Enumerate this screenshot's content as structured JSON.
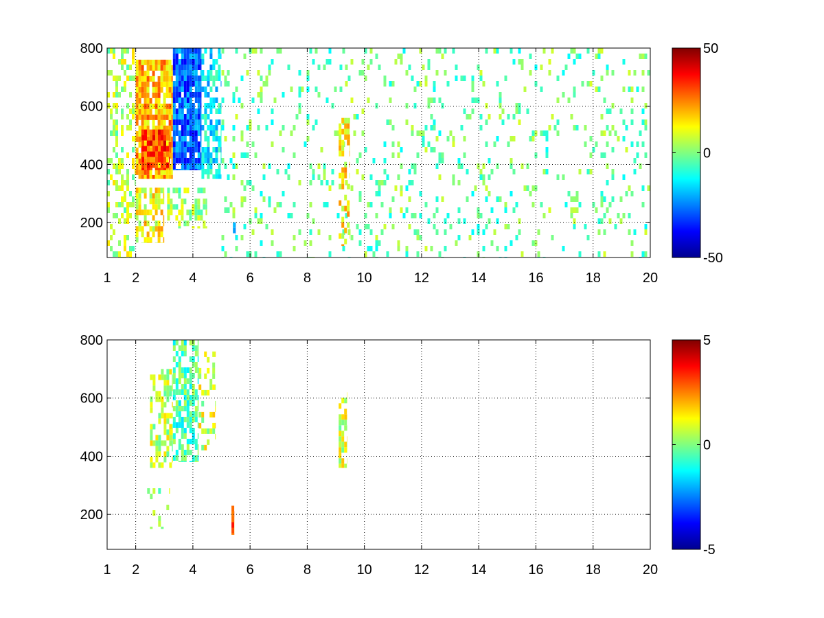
{
  "chart_data": [
    {
      "type": "heatmap",
      "title": "",
      "xlabel": "",
      "ylabel": "",
      "xlim": [
        1,
        20
      ],
      "ylim": [
        80,
        800
      ],
      "x_ticks": [
        1,
        2,
        4,
        6,
        8,
        10,
        12,
        14,
        16,
        18,
        20
      ],
      "x_tick_labels": [
        "1",
        "2",
        "4",
        "6",
        "8",
        "10",
        "12",
        "14",
        "16",
        "18",
        "20"
      ],
      "y_ticks": [
        200,
        400,
        600,
        800
      ],
      "y_tick_labels": [
        "200",
        "400",
        "600",
        "800"
      ],
      "grid": true,
      "colormap": "jet",
      "color_range": [
        -50,
        50
      ],
      "colorbar_ticks": [
        50,
        0,
        -50
      ],
      "colorbar_tick_labels": [
        "50",
        "0",
        "-50"
      ],
      "regions": [
        {
          "x": [
            1.0,
            2.0
          ],
          "y": [
            80,
            800
          ],
          "value": 5,
          "density": 0.38
        },
        {
          "x": [
            2.0,
            3.3
          ],
          "y": [
            350,
            760
          ],
          "value": 20,
          "density": 0.9
        },
        {
          "x": [
            2.2,
            3.2
          ],
          "y": [
            380,
            520
          ],
          "value": 32,
          "density": 0.85
        },
        {
          "x": [
            2.0,
            3.0
          ],
          "y": [
            130,
            320
          ],
          "value": 12,
          "density": 0.6
        },
        {
          "x": [
            3.3,
            4.3
          ],
          "y": [
            380,
            800
          ],
          "value": -28,
          "density": 0.9
        },
        {
          "x": [
            4.3,
            5.0
          ],
          "y": [
            350,
            800
          ],
          "value": -14,
          "density": 0.6
        },
        {
          "x": [
            3.1,
            4.5
          ],
          "y": [
            180,
            320
          ],
          "value": 2,
          "density": 0.45
        },
        {
          "x": [
            5.0,
            20.0
          ],
          "y": [
            80,
            800
          ],
          "value": -2,
          "density": 0.12
        },
        {
          "x": [
            9.1,
            9.5
          ],
          "y": [
            120,
            560
          ],
          "value": 14,
          "density": 0.45
        },
        {
          "x": [
            5.4,
            5.5
          ],
          "y": [
            120,
            220
          ],
          "value": -30,
          "density": 0.5
        }
      ]
    },
    {
      "type": "heatmap",
      "title": "",
      "xlabel": "",
      "ylabel": "",
      "xlim": [
        1,
        20
      ],
      "ylim": [
        80,
        800
      ],
      "x_ticks": [
        1,
        2,
        4,
        6,
        8,
        10,
        12,
        14,
        16,
        18,
        20
      ],
      "x_tick_labels": [
        "1",
        "2",
        "4",
        "6",
        "8",
        "10",
        "12",
        "14",
        "16",
        "18",
        "20"
      ],
      "y_ticks": [
        200,
        400,
        600,
        800
      ],
      "y_tick_labels": [
        "200",
        "400",
        "600",
        "800"
      ],
      "grid": true,
      "colormap": "jet",
      "color_range": [
        -5,
        5
      ],
      "colorbar_ticks": [
        5,
        0,
        -5
      ],
      "colorbar_tick_labels": [
        "5",
        "0",
        "-5"
      ],
      "regions": [
        {
          "x": [
            2.5,
            3.3
          ],
          "y": [
            360,
            700
          ],
          "value": 0.6,
          "density": 0.45
        },
        {
          "x": [
            3.3,
            4.2
          ],
          "y": [
            380,
            800
          ],
          "value": -0.5,
          "density": 0.65
        },
        {
          "x": [
            4.2,
            4.8
          ],
          "y": [
            420,
            760
          ],
          "value": 0.8,
          "density": 0.35
        },
        {
          "x": [
            2.4,
            3.2
          ],
          "y": [
            150,
            290
          ],
          "value": 0.4,
          "density": 0.2
        },
        {
          "x": [
            9.1,
            9.4
          ],
          "y": [
            360,
            620
          ],
          "value": 0.8,
          "density": 0.55
        },
        {
          "x": [
            5.35,
            5.45
          ],
          "y": [
            130,
            230
          ],
          "value": 2.5,
          "density": 0.7
        }
      ]
    }
  ]
}
